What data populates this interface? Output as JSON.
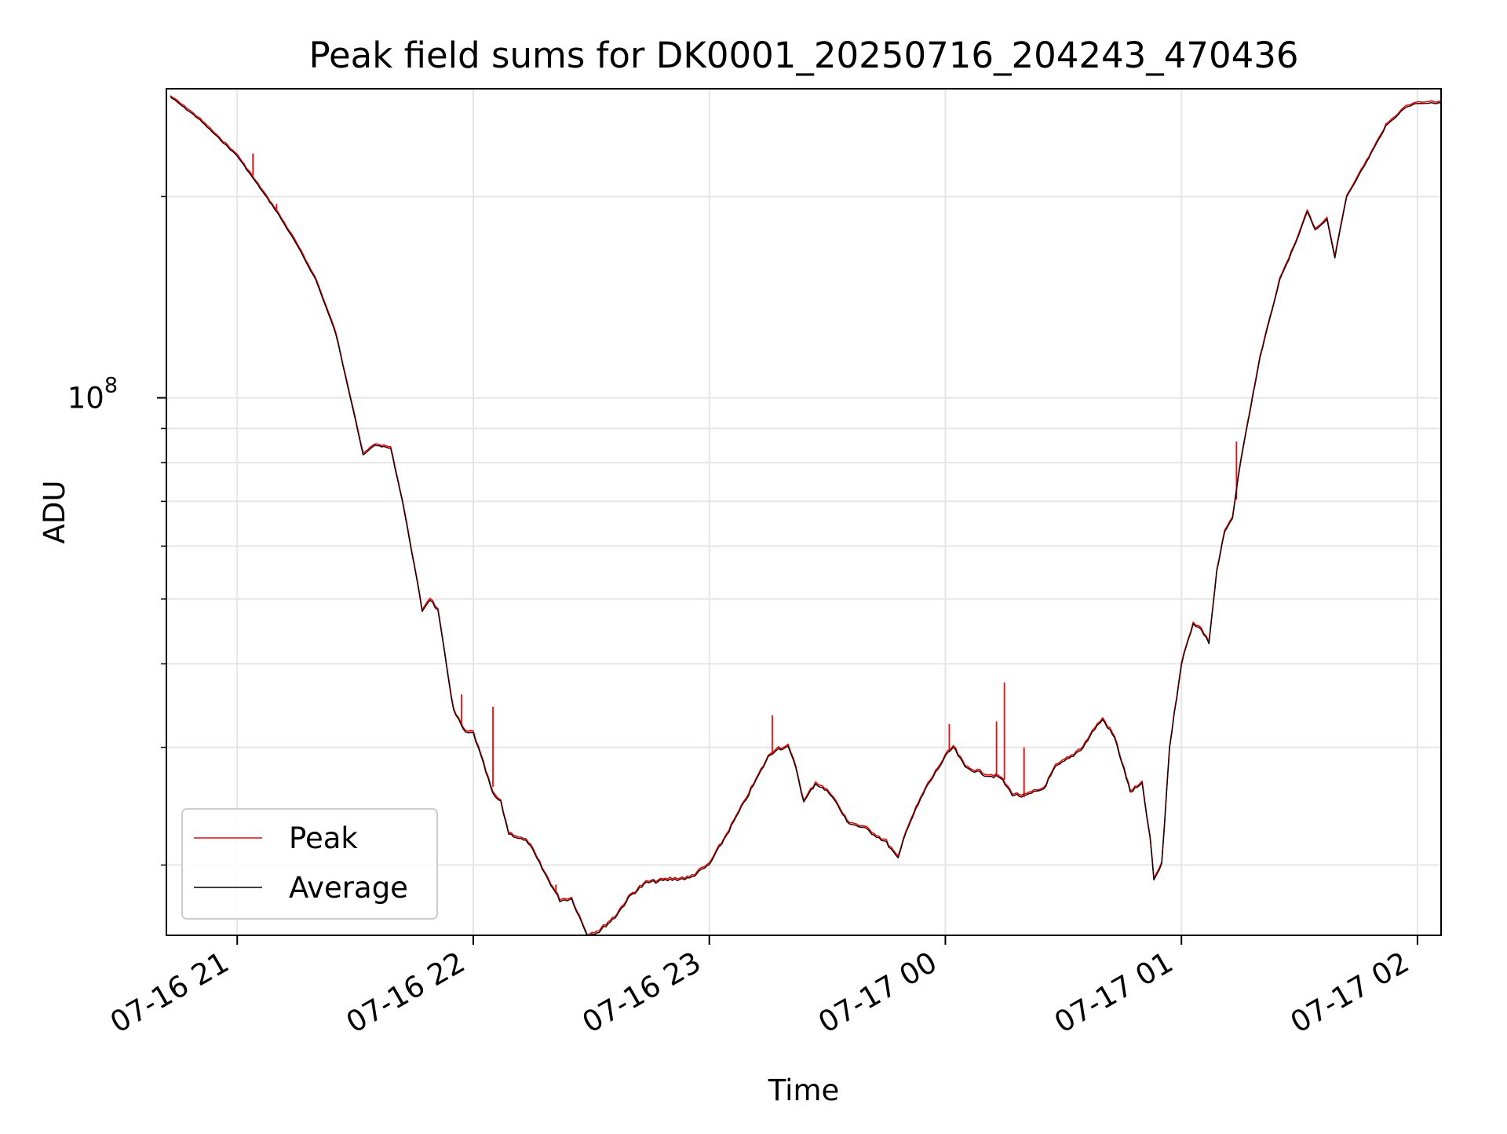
{
  "colors": {
    "peak": "#ff0000",
    "average": "#000000",
    "grid": "#e6e6e6",
    "background": "#ffffff"
  },
  "chart_data": {
    "type": "line",
    "title": "Peak field sums for DK0001_20250716_204243_470436",
    "xlabel": "Time",
    "ylabel": "ADU",
    "y_scale": "log",
    "ylim": [
      15700000,
      290000000
    ],
    "xlim": [
      "2025-07-16 20:42",
      "2025-07-17 02:06"
    ],
    "x_ticks": [
      "07-16 21",
      "07-16 22",
      "07-16 23",
      "07-17 00",
      "07-17 01",
      "07-17 02"
    ],
    "x_tick_times": [
      "2025-07-16 21:00",
      "2025-07-16 22:00",
      "2025-07-16 23:00",
      "2025-07-17 00:00",
      "2025-07-17 01:00",
      "2025-07-17 02:00"
    ],
    "y_major_tick": {
      "value": 100000000,
      "base": "10",
      "exponent": "8"
    },
    "y_minor_ticks": [
      20000000,
      30000000,
      40000000,
      50000000,
      60000000,
      70000000,
      80000000,
      90000000,
      200000000
    ],
    "grid": true,
    "legend_position": "lower-left",
    "series": [
      {
        "name": "Average",
        "color": "#000000",
        "points": [
          [
            "2025-07-16 20:43",
            282000000
          ],
          [
            "2025-07-16 20:50",
            262000000
          ],
          [
            "2025-07-16 21:00",
            230000000
          ],
          [
            "2025-07-16 21:10",
            190000000
          ],
          [
            "2025-07-16 21:15",
            170000000
          ],
          [
            "2025-07-16 21:20",
            150000000
          ],
          [
            "2025-07-16 21:25",
            125000000
          ],
          [
            "2025-07-16 21:30",
            93000000
          ],
          [
            "2025-07-16 21:32",
            82000000
          ],
          [
            "2025-07-16 21:35",
            85000000
          ],
          [
            "2025-07-16 21:39",
            84000000
          ],
          [
            "2025-07-16 21:42",
            70000000
          ],
          [
            "2025-07-16 21:45",
            56000000
          ],
          [
            "2025-07-16 21:47",
            48000000
          ],
          [
            "2025-07-16 21:49",
            50000000
          ],
          [
            "2025-07-16 21:51",
            48000000
          ],
          [
            "2025-07-16 21:55",
            34000000
          ],
          [
            "2025-07-16 21:58",
            31500000
          ],
          [
            "2025-07-16 22:00",
            31500000
          ],
          [
            "2025-07-16 22:02",
            29000000
          ],
          [
            "2025-07-16 22:05",
            25500000
          ],
          [
            "2025-07-16 22:07",
            24800000
          ],
          [
            "2025-07-16 22:09",
            22300000
          ],
          [
            "2025-07-16 22:14",
            21600000
          ],
          [
            "2025-07-16 22:18",
            19500000
          ],
          [
            "2025-07-16 22:22",
            17700000
          ],
          [
            "2025-07-16 22:25",
            17800000
          ],
          [
            "2025-07-16 22:27",
            16700000
          ],
          [
            "2025-07-16 22:29",
            15700000
          ],
          [
            "2025-07-16 22:32",
            15900000
          ],
          [
            "2025-07-16 22:36",
            16700000
          ],
          [
            "2025-07-16 22:40",
            18000000
          ],
          [
            "2025-07-16 22:44",
            18800000
          ],
          [
            "2025-07-16 22:50",
            19000000
          ],
          [
            "2025-07-16 22:55",
            19100000
          ],
          [
            "2025-07-16 23:00",
            20000000
          ],
          [
            "2025-07-16 23:05",
            22500000
          ],
          [
            "2025-07-16 23:10",
            25500000
          ],
          [
            "2025-07-16 23:15",
            29000000
          ],
          [
            "2025-07-16 23:17",
            29800000
          ],
          [
            "2025-07-16 23:20",
            30000000
          ],
          [
            "2025-07-16 23:22",
            28000000
          ],
          [
            "2025-07-16 23:24",
            24800000
          ],
          [
            "2025-07-16 23:27",
            26500000
          ],
          [
            "2025-07-16 23:31",
            25500000
          ],
          [
            "2025-07-16 23:35",
            23200000
          ],
          [
            "2025-07-16 23:40",
            22600000
          ],
          [
            "2025-07-16 23:45",
            21600000
          ],
          [
            "2025-07-16 23:48",
            20400000
          ],
          [
            "2025-07-16 23:50",
            22500000
          ],
          [
            "2025-07-16 23:55",
            26000000
          ],
          [
            "2025-07-17 00:00",
            29000000
          ],
          [
            "2025-07-17 00:02",
            30000000
          ],
          [
            "2025-07-17 00:05",
            28000000
          ],
          [
            "2025-07-17 00:10",
            27300000
          ],
          [
            "2025-07-17 00:14",
            27000000
          ],
          [
            "2025-07-17 00:17",
            25500000
          ],
          [
            "2025-07-17 00:20",
            25300000
          ],
          [
            "2025-07-17 00:25",
            26000000
          ],
          [
            "2025-07-17 00:28",
            28000000
          ],
          [
            "2025-07-17 00:32",
            29000000
          ],
          [
            "2025-07-17 00:35",
            30000000
          ],
          [
            "2025-07-17 00:38",
            32000000
          ],
          [
            "2025-07-17 00:40",
            33000000
          ],
          [
            "2025-07-17 00:43",
            31000000
          ],
          [
            "2025-07-17 00:46",
            27000000
          ],
          [
            "2025-07-17 00:47",
            25700000
          ],
          [
            "2025-07-17 00:50",
            26400000
          ],
          [
            "2025-07-17 00:52",
            22000000
          ],
          [
            "2025-07-17 00:53",
            19000000
          ],
          [
            "2025-07-17 00:55",
            20000000
          ],
          [
            "2025-07-17 00:57",
            30000000
          ],
          [
            "2025-07-17 01:00",
            40000000
          ],
          [
            "2025-07-17 01:03",
            46000000
          ],
          [
            "2025-07-17 01:05",
            45000000
          ],
          [
            "2025-07-17 01:07",
            43000000
          ],
          [
            "2025-07-17 01:09",
            55000000
          ],
          [
            "2025-07-17 01:11",
            63000000
          ],
          [
            "2025-07-17 01:13",
            66000000
          ],
          [
            "2025-07-17 01:15",
            80000000
          ],
          [
            "2025-07-17 01:20",
            115000000
          ],
          [
            "2025-07-17 01:25",
            150000000
          ],
          [
            "2025-07-17 01:29",
            170000000
          ],
          [
            "2025-07-17 01:32",
            190000000
          ],
          [
            "2025-07-17 01:34",
            178000000
          ],
          [
            "2025-07-17 01:37",
            185000000
          ],
          [
            "2025-07-17 01:39",
            162000000
          ],
          [
            "2025-07-17 01:42",
            200000000
          ],
          [
            "2025-07-17 01:47",
            225000000
          ],
          [
            "2025-07-17 01:52",
            255000000
          ],
          [
            "2025-07-17 01:57",
            272000000
          ],
          [
            "2025-07-17 02:00",
            276000000
          ],
          [
            "2025-07-17 02:06",
            276000000
          ]
        ]
      },
      {
        "name": "Peak",
        "color": "#ff0000",
        "spikes": [
          [
            "2025-07-16 21:04",
            232000000
          ],
          [
            "2025-07-16 21:10",
            195000000
          ],
          [
            "2025-07-16 21:57",
            36000000
          ],
          [
            "2025-07-16 22:05",
            34500000
          ],
          [
            "2025-07-16 22:21",
            18700000
          ],
          [
            "2025-07-16 23:16",
            33500000
          ],
          [
            "2025-07-17 00:01",
            32500000
          ],
          [
            "2025-07-17 00:13",
            32800000
          ],
          [
            "2025-07-17 00:15",
            37500000
          ],
          [
            "2025-07-17 00:20",
            30000000
          ],
          [
            "2025-07-17 01:14",
            86000000
          ]
        ]
      }
    ]
  }
}
